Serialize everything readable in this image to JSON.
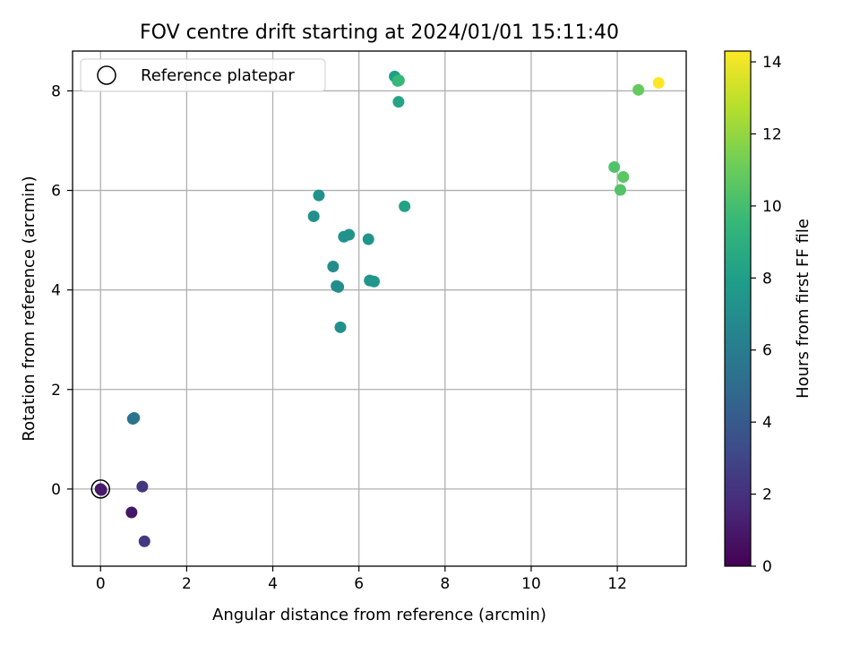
{
  "chart_data": {
    "type": "scatter",
    "title": "FOV centre drift starting at 2024/01/01 15:11:40",
    "xlabel": "Angular distance from reference (arcmin)",
    "ylabel": "Rotation from reference (arcmin)",
    "xlim": [
      -0.65,
      13.6
    ],
    "ylim": [
      -1.55,
      8.8
    ],
    "xticks": [
      0,
      2,
      4,
      6,
      8,
      10,
      12
    ],
    "yticks": [
      0,
      2,
      4,
      6,
      8
    ],
    "grid": true,
    "legend": {
      "placement": "upper-left",
      "entries": [
        "Reference platepar"
      ]
    },
    "reference_point": {
      "x": 0,
      "y": 0
    },
    "colorbar": {
      "label": "Hours from first FF file",
      "min": 0,
      "max": 14.3,
      "ticks": [
        0,
        2,
        4,
        6,
        8,
        10,
        12,
        14
      ],
      "colormap": "viridis"
    },
    "points": [
      {
        "x": 0.0,
        "y": 0.0,
        "hours": 0.8
      },
      {
        "x": 0.02,
        "y": -0.02,
        "hours": 1.0
      },
      {
        "x": 0.72,
        "y": -0.47,
        "hours": 0.9
      },
      {
        "x": 0.97,
        "y": 0.05,
        "hours": 2.2
      },
      {
        "x": 1.02,
        "y": -1.05,
        "hours": 2.4
      },
      {
        "x": 0.75,
        "y": 1.41,
        "hours": 5.4
      },
      {
        "x": 0.78,
        "y": 1.43,
        "hours": 5.5
      },
      {
        "x": 4.95,
        "y": 5.48,
        "hours": 7.1
      },
      {
        "x": 5.07,
        "y": 5.9,
        "hours": 7.2
      },
      {
        "x": 5.4,
        "y": 4.47,
        "hours": 7.0
      },
      {
        "x": 5.48,
        "y": 4.08,
        "hours": 6.9
      },
      {
        "x": 5.52,
        "y": 4.06,
        "hours": 7.0
      },
      {
        "x": 5.57,
        "y": 3.25,
        "hours": 7.1
      },
      {
        "x": 5.65,
        "y": 5.07,
        "hours": 7.2
      },
      {
        "x": 5.77,
        "y": 5.11,
        "hours": 7.3
      },
      {
        "x": 6.22,
        "y": 5.02,
        "hours": 7.4
      },
      {
        "x": 6.25,
        "y": 4.19,
        "hours": 7.5
      },
      {
        "x": 6.35,
        "y": 4.17,
        "hours": 7.5
      },
      {
        "x": 6.83,
        "y": 8.29,
        "hours": 8.0
      },
      {
        "x": 6.9,
        "y": 8.2,
        "hours": 9.2
      },
      {
        "x": 6.93,
        "y": 8.21,
        "hours": 9.6
      },
      {
        "x": 6.92,
        "y": 7.78,
        "hours": 8.3
      },
      {
        "x": 7.06,
        "y": 5.68,
        "hours": 8.2
      },
      {
        "x": 11.93,
        "y": 6.47,
        "hours": 10.3
      },
      {
        "x": 12.07,
        "y": 6.01,
        "hours": 10.4
      },
      {
        "x": 12.14,
        "y": 6.27,
        "hours": 10.6
      },
      {
        "x": 12.49,
        "y": 8.02,
        "hours": 10.9
      },
      {
        "x": 12.96,
        "y": 8.16,
        "hours": 14.3
      }
    ]
  }
}
